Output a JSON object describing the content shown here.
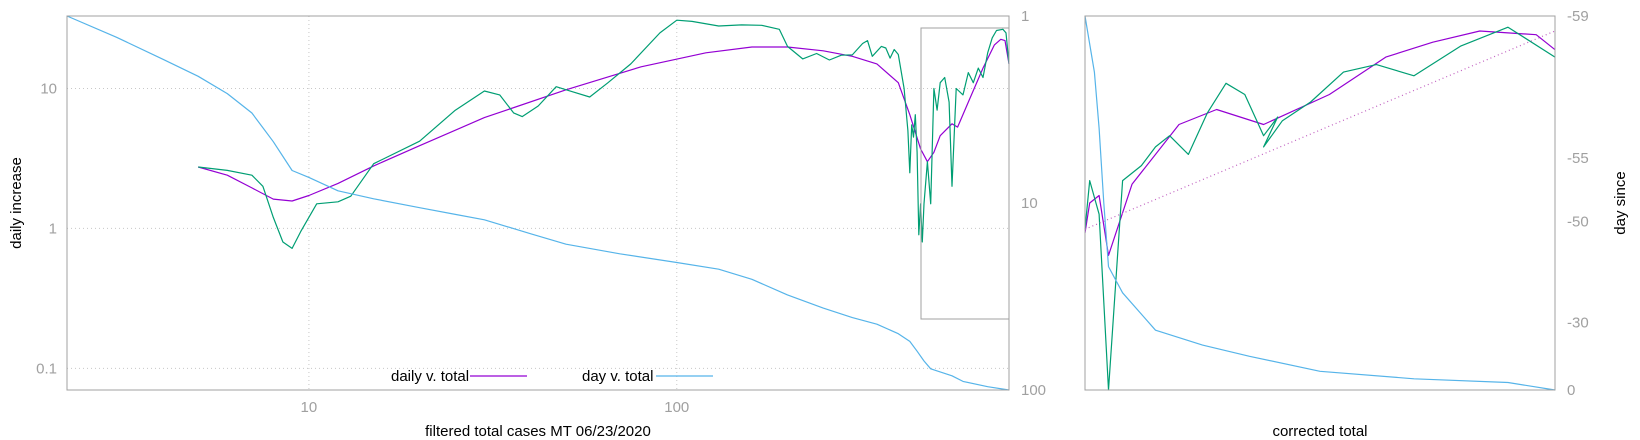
{
  "chart_data": [
    {
      "type": "line",
      "xlabel": "filtered total cases MT 06/23/2020",
      "ylabel": "daily increase",
      "xscale": "log",
      "yscale": "log",
      "y2scale": "log-reversed",
      "xlim": [
        2.2,
        800
      ],
      "ylim": [
        0.07,
        33
      ],
      "y2lim": [
        1,
        100
      ],
      "xticks": [
        "10",
        "100"
      ],
      "yticks": [
        "0.1",
        "1",
        "10"
      ],
      "y2ticks": [
        "1",
        "10",
        "100"
      ],
      "grid": true,
      "legend_position": "bottom-center",
      "colors": {
        "green": "#009e73",
        "purple": "#9400d3",
        "blue": "#56b4e9",
        "frame": "#a0a0a0"
      },
      "series": [
        {
          "name": "daily v. total",
          "color": "#9400d3",
          "axis": "left",
          "points": [
            [
              5,
              2.75
            ],
            [
              6,
              2.4
            ],
            [
              7,
              1.95
            ],
            [
              8,
              1.62
            ],
            [
              9,
              1.57
            ],
            [
              10,
              1.72
            ],
            [
              12,
              2.1
            ],
            [
              15,
              2.8
            ],
            [
              20,
              3.9
            ],
            [
              30,
              6.2
            ],
            [
              50,
              9.8
            ],
            [
              80,
              14.3
            ],
            [
              120,
              18.0
            ],
            [
              160,
              19.8
            ],
            [
              200,
              19.8
            ],
            [
              250,
              18.6
            ],
            [
              300,
              17.0
            ],
            [
              350,
              15.0
            ],
            [
              400,
              11.0
            ],
            [
              430,
              6.5
            ],
            [
              460,
              3.7
            ],
            [
              480,
              3.0
            ],
            [
              500,
              3.5
            ],
            [
              520,
              4.6
            ],
            [
              560,
              5.6
            ],
            [
              580,
              5.3
            ],
            [
              620,
              8.0
            ],
            [
              680,
              14.0
            ],
            [
              730,
              20.5
            ],
            [
              760,
              22.5
            ],
            [
              780,
              22.0
            ],
            [
              800,
              15.0
            ]
          ]
        },
        {
          "name": "",
          "color": "#009e73",
          "axis": "left",
          "points": [
            [
              5,
              2.75
            ],
            [
              6,
              2.6
            ],
            [
              7,
              2.4
            ],
            [
              7.5,
              2.0
            ],
            [
              8,
              1.2
            ],
            [
              8.5,
              0.8
            ],
            [
              9,
              0.72
            ],
            [
              9.5,
              0.95
            ],
            [
              10.5,
              1.5
            ],
            [
              12,
              1.55
            ],
            [
              13,
              1.7
            ],
            [
              15,
              2.9
            ],
            [
              20,
              4.2
            ],
            [
              25,
              7.0
            ],
            [
              30,
              9.6
            ],
            [
              33,
              9.0
            ],
            [
              36,
              6.7
            ],
            [
              38,
              6.3
            ],
            [
              42,
              7.5
            ],
            [
              47,
              10.3
            ],
            [
              52,
              9.5
            ],
            [
              58,
              8.7
            ],
            [
              65,
              11.0
            ],
            [
              75,
              15.0
            ],
            [
              90,
              25.0
            ],
            [
              100,
              30.8
            ],
            [
              110,
              30.2
            ],
            [
              130,
              28.0
            ],
            [
              150,
              28.5
            ],
            [
              170,
              28.3
            ],
            [
              190,
              26.5
            ],
            [
              200,
              20.0
            ],
            [
              220,
              16.3
            ],
            [
              240,
              17.8
            ],
            [
              260,
              16.0
            ],
            [
              280,
              17.3
            ],
            [
              300,
              17.4
            ],
            [
              320,
              21.0
            ],
            [
              330,
              22.0
            ],
            [
              340,
              17.0
            ],
            [
              360,
              20.0
            ],
            [
              370,
              19.5
            ],
            [
              380,
              16.5
            ],
            [
              390,
              19.0
            ],
            [
              400,
              17.5
            ],
            [
              415,
              10.0
            ],
            [
              425,
              5.0
            ],
            [
              430,
              2.5
            ],
            [
              435,
              5.5
            ],
            [
              440,
              4.5
            ],
            [
              445,
              6.5
            ],
            [
              450,
              3.5
            ],
            [
              455,
              0.9
            ],
            [
              460,
              1.5
            ],
            [
              465,
              0.8
            ],
            [
              470,
              1.5
            ],
            [
              480,
              3.0
            ],
            [
              490,
              1.5
            ],
            [
              500,
              10.0
            ],
            [
              510,
              7.0
            ],
            [
              520,
              11.0
            ],
            [
              535,
              12.0
            ],
            [
              550,
              8.0
            ],
            [
              560,
              2.0
            ],
            [
              575,
              10.0
            ],
            [
              600,
              9.0
            ],
            [
              620,
              13.0
            ],
            [
              640,
              11.0
            ],
            [
              660,
              14.0
            ],
            [
              680,
              12.0
            ],
            [
              700,
              18.0
            ],
            [
              720,
              23.0
            ],
            [
              740,
              26.0
            ],
            [
              770,
              26.5
            ],
            [
              785,
              25.0
            ],
            [
              800,
              15.0
            ]
          ]
        },
        {
          "name": "day v. total",
          "color": "#56b4e9",
          "axis": "right",
          "points": [
            [
              2.2,
              1.0
            ],
            [
              3,
              1.3
            ],
            [
              4,
              1.7
            ],
            [
              5,
              2.1
            ],
            [
              6,
              2.6
            ],
            [
              7,
              3.3
            ],
            [
              8,
              4.7
            ],
            [
              9,
              6.7
            ],
            [
              10,
              7.3
            ],
            [
              12,
              8.6
            ],
            [
              15,
              9.5
            ],
            [
              20,
              10.6
            ],
            [
              25,
              11.5
            ],
            [
              30,
              12.3
            ],
            [
              40,
              14.6
            ],
            [
              50,
              16.6
            ],
            [
              70,
              18.7
            ],
            [
              100,
              20.8
            ],
            [
              130,
              22.6
            ],
            [
              160,
              25.6
            ],
            [
              200,
              31.0
            ],
            [
              250,
              36.5
            ],
            [
              300,
              41.0
            ],
            [
              350,
              44.5
            ],
            [
              400,
              50.0
            ],
            [
              430,
              55.0
            ],
            [
              450,
              62.0
            ],
            [
              470,
              70.0
            ],
            [
              490,
              77.0
            ],
            [
              520,
              80.0
            ],
            [
              560,
              84.0
            ],
            [
              600,
              90.0
            ],
            [
              700,
              96.0
            ],
            [
              800,
              100.0
            ]
          ]
        }
      ]
    },
    {
      "type": "line",
      "xlabel": "corrected total",
      "ylabel": "day since",
      "yticks_right": [
        "-59",
        "-55",
        "-50",
        "-30",
        "0"
      ],
      "grid": false,
      "series": [
        {
          "name": "",
          "color": "#9400d3",
          "points": [
            [
              0,
              0.42
            ],
            [
              0.01,
              0.5
            ],
            [
              0.03,
              0.52
            ],
            [
              0.05,
              0.36
            ],
            [
              0.1,
              0.55
            ],
            [
              0.2,
              0.71
            ],
            [
              0.28,
              0.75
            ],
            [
              0.38,
              0.71
            ],
            [
              0.52,
              0.79
            ],
            [
              0.64,
              0.89
            ],
            [
              0.74,
              0.93
            ],
            [
              0.84,
              0.96
            ],
            [
              0.96,
              0.95
            ],
            [
              1.0,
              0.91
            ]
          ]
        },
        {
          "name": "",
          "color": "#009e73",
          "points": [
            [
              0,
              0.43
            ],
            [
              0.01,
              0.56
            ],
            [
              0.03,
              0.47
            ],
            [
              0.05,
              0.0
            ],
            [
              0.08,
              0.56
            ],
            [
              0.12,
              0.6
            ],
            [
              0.15,
              0.65
            ],
            [
              0.18,
              0.68
            ],
            [
              0.22,
              0.63
            ],
            [
              0.26,
              0.74
            ],
            [
              0.3,
              0.82
            ],
            [
              0.34,
              0.79
            ],
            [
              0.38,
              0.68
            ],
            [
              0.41,
              0.73
            ],
            [
              0.38,
              0.65
            ],
            [
              0.42,
              0.72
            ],
            [
              0.48,
              0.77
            ],
            [
              0.55,
              0.85
            ],
            [
              0.62,
              0.87
            ],
            [
              0.7,
              0.84
            ],
            [
              0.8,
              0.92
            ],
            [
              0.9,
              0.97
            ],
            [
              1.0,
              0.89
            ]
          ]
        },
        {
          "name": "",
          "color": "#56b4e9",
          "points": [
            [
              0,
              1.0
            ],
            [
              0.02,
              0.85
            ],
            [
              0.03,
              0.7
            ],
            [
              0.04,
              0.5
            ],
            [
              0.05,
              0.33
            ],
            [
              0.08,
              0.26
            ],
            [
              0.15,
              0.16
            ],
            [
              0.25,
              0.12
            ],
            [
              0.35,
              0.09
            ],
            [
              0.5,
              0.05
            ],
            [
              0.7,
              0.03
            ],
            [
              0.9,
              0.02
            ],
            [
              1.0,
              0.0
            ]
          ]
        },
        {
          "name": "",
          "color": "#c060c0",
          "style": "dotted",
          "points": [
            [
              0,
              0.43
            ],
            [
              1.0,
              0.96
            ]
          ]
        }
      ]
    }
  ]
}
